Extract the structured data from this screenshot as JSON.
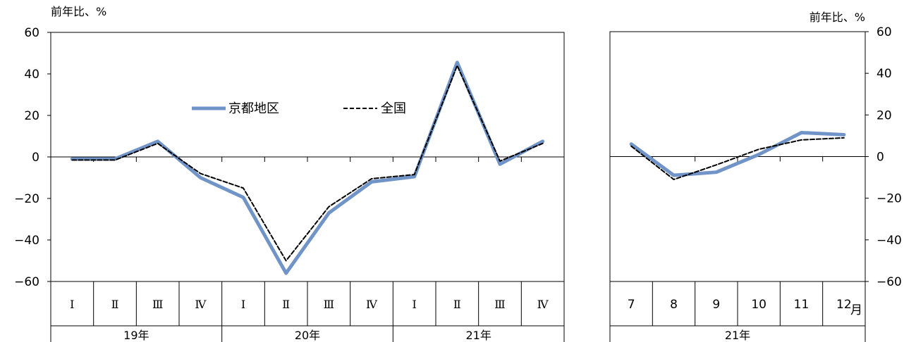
{
  "chart_data": [
    {
      "type": "line",
      "ylabel": "前年比、%",
      "ylim": [
        -60,
        60
      ],
      "yticks": [
        60,
        40,
        20,
        0,
        -20,
        -40,
        -60
      ],
      "ytick_labels": [
        "60",
        "40",
        "20",
        "0",
        "−20",
        "−40",
        "−60"
      ],
      "categories": [
        "Ⅰ",
        "Ⅱ",
        "Ⅲ",
        "Ⅳ",
        "Ⅰ",
        "Ⅱ",
        "Ⅲ",
        "Ⅳ",
        "Ⅰ",
        "Ⅱ",
        "Ⅲ",
        "Ⅳ"
      ],
      "groups": [
        {
          "label": "19年",
          "span": 4
        },
        {
          "label": "20年",
          "span": 4
        },
        {
          "label": "21年",
          "span": 4
        }
      ],
      "grid": false,
      "legend": "top-center",
      "series": [
        {
          "name": "京都地区",
          "color": "#7094c7",
          "style": "solid",
          "values": [
            -1,
            -1,
            7.5,
            -10,
            -19.5,
            -56,
            -27,
            -12,
            -9.5,
            45.5,
            -3.5,
            7.5
          ]
        },
        {
          "name": "全国",
          "color": "#000000",
          "style": "dashed",
          "values": [
            -1.5,
            -1.5,
            6.5,
            -8,
            -15,
            -50,
            -24,
            -10.5,
            -8.5,
            44,
            -2,
            6.5
          ]
        }
      ]
    },
    {
      "type": "line",
      "ylabel": "前年比、%",
      "ylim": [
        -60,
        60
      ],
      "yticks": [
        60,
        40,
        20,
        0,
        -20,
        -40,
        -60
      ],
      "ytick_labels": [
        "60",
        "40",
        "20",
        "0",
        "−20",
        "−40",
        "−60"
      ],
      "categories": [
        "7",
        "8",
        "9",
        "10",
        "11",
        "12"
      ],
      "category_suffix": "月",
      "groups": [
        {
          "label": "21年",
          "span": 6
        }
      ],
      "grid": false,
      "series": [
        {
          "name": "京都地区",
          "color": "#7094c7",
          "style": "solid",
          "values": [
            6,
            -9,
            -7.5,
            1,
            11.5,
            10.5
          ]
        },
        {
          "name": "全国",
          "color": "#000000",
          "style": "dashed",
          "values": [
            5,
            -11,
            -4,
            3.5,
            8,
            9
          ]
        }
      ]
    }
  ]
}
